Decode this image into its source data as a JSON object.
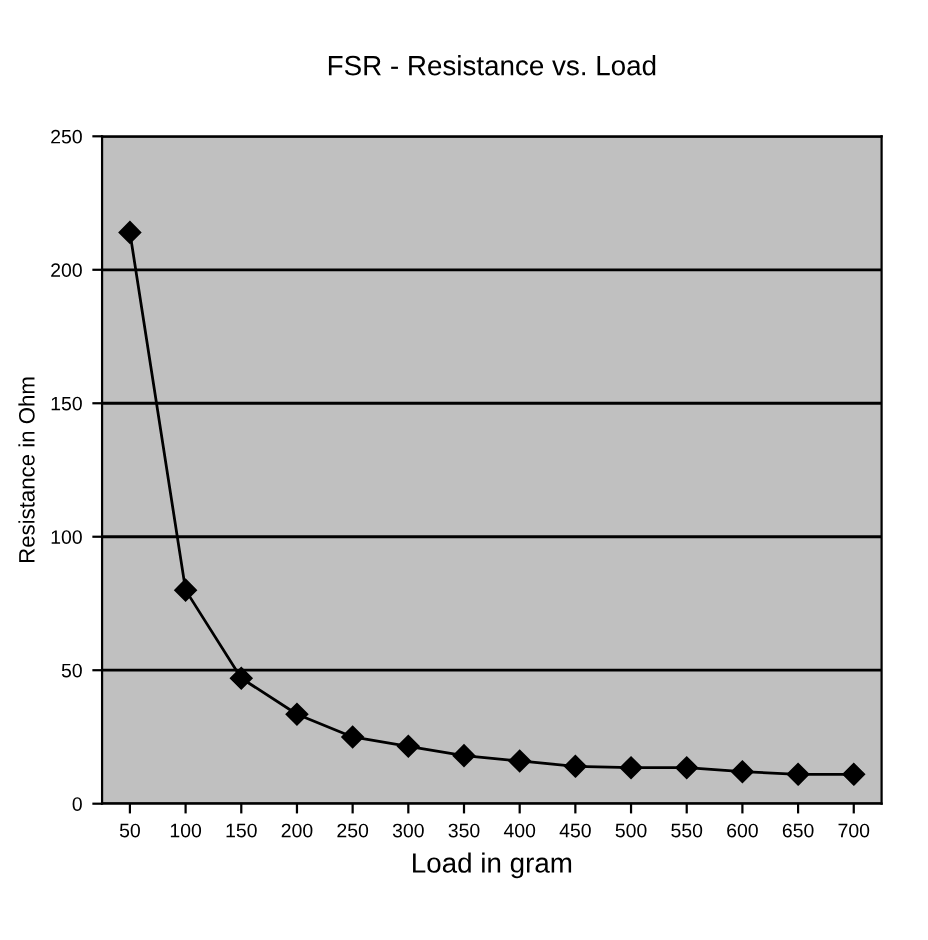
{
  "chart_data": {
    "type": "line",
    "title": "FSR - Resistance vs. Load",
    "xlabel": "Load in gram",
    "ylabel": "Resistance in Ohm",
    "categories": [
      "50",
      "100",
      "150",
      "200",
      "250",
      "300",
      "350",
      "400",
      "450",
      "500",
      "550",
      "600",
      "650",
      "700"
    ],
    "series": [
      {
        "color": "#000000",
        "values": [
          214,
          80,
          47,
          33.5,
          25,
          21.5,
          18,
          16,
          14,
          13.5,
          13.5,
          12,
          11,
          11
        ]
      }
    ],
    "ylim": [
      0,
      250
    ],
    "yticks": [
      0,
      50,
      100,
      150,
      200,
      250
    ],
    "grid": "y",
    "legend": false,
    "marker": "diamond",
    "line_style": "solid"
  }
}
